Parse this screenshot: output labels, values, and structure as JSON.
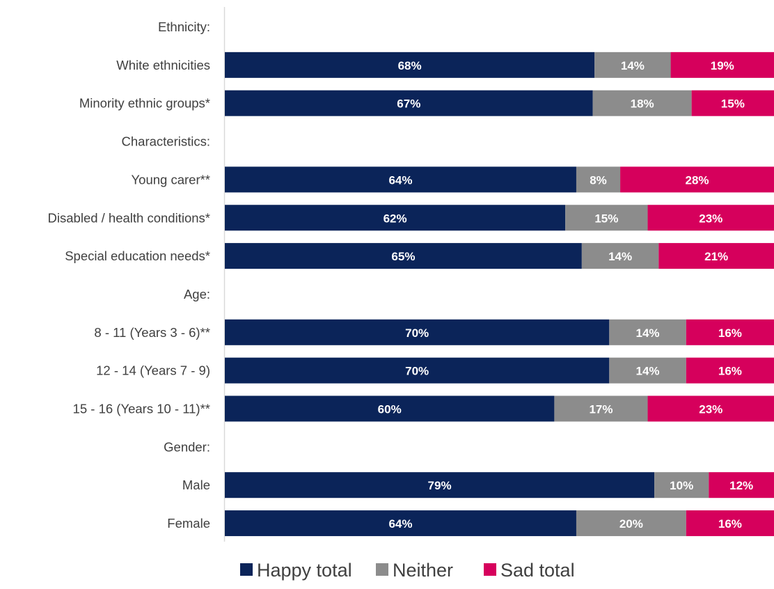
{
  "chart_data": {
    "type": "bar",
    "orientation": "horizontal",
    "stacked": true,
    "title": "",
    "xlabel": "",
    "ylabel": "",
    "xlim": [
      0,
      100
    ],
    "grid": false,
    "legend_position": "bottom",
    "series": [
      {
        "name": "Happy total",
        "color": "#0b2459"
      },
      {
        "name": "Neither",
        "color": "#8c8c8c"
      },
      {
        "name": "Sad total",
        "color": "#d6005c"
      }
    ],
    "rows": [
      {
        "label": "Ethnicity:",
        "heading": true
      },
      {
        "label": "White ethnicities",
        "values": [
          68,
          14,
          19
        ],
        "labels": [
          "68%",
          "14%",
          "19%"
        ]
      },
      {
        "label": "Minority ethnic groups*",
        "values": [
          67,
          18,
          15
        ],
        "labels": [
          "67%",
          "18%",
          "15%"
        ]
      },
      {
        "label": "Characteristics:",
        "heading": true
      },
      {
        "label": "Young carer**",
        "values": [
          64,
          8,
          28
        ],
        "labels": [
          "64%",
          "8%",
          "28%"
        ]
      },
      {
        "label": "Disabled / health conditions*",
        "values": [
          62,
          15,
          23
        ],
        "labels": [
          "62%",
          "15%",
          "23%"
        ]
      },
      {
        "label": "Special education needs*",
        "values": [
          65,
          14,
          21
        ],
        "labels": [
          "65%",
          "14%",
          "21%"
        ]
      },
      {
        "label": "Age:",
        "heading": true
      },
      {
        "label": "8 - 11 (Years 3 - 6)**",
        "values": [
          70,
          14,
          16
        ],
        "labels": [
          "70%",
          "14%",
          "16%"
        ]
      },
      {
        "label": "12 - 14 (Years 7 - 9)",
        "values": [
          70,
          14,
          16
        ],
        "labels": [
          "70%",
          "14%",
          "16%"
        ]
      },
      {
        "label": "15 - 16 (Years 10 - 11)**",
        "values": [
          60,
          17,
          23
        ],
        "labels": [
          "60%",
          "17%",
          "23%"
        ]
      },
      {
        "label": "Gender:",
        "heading": true
      },
      {
        "label": "Male",
        "values": [
          79,
          10,
          12
        ],
        "labels": [
          "79%",
          "10%",
          "12%"
        ]
      },
      {
        "label": "Female",
        "values": [
          64,
          20,
          16
        ],
        "labels": [
          "64%",
          "20%",
          "16%"
        ]
      }
    ]
  }
}
